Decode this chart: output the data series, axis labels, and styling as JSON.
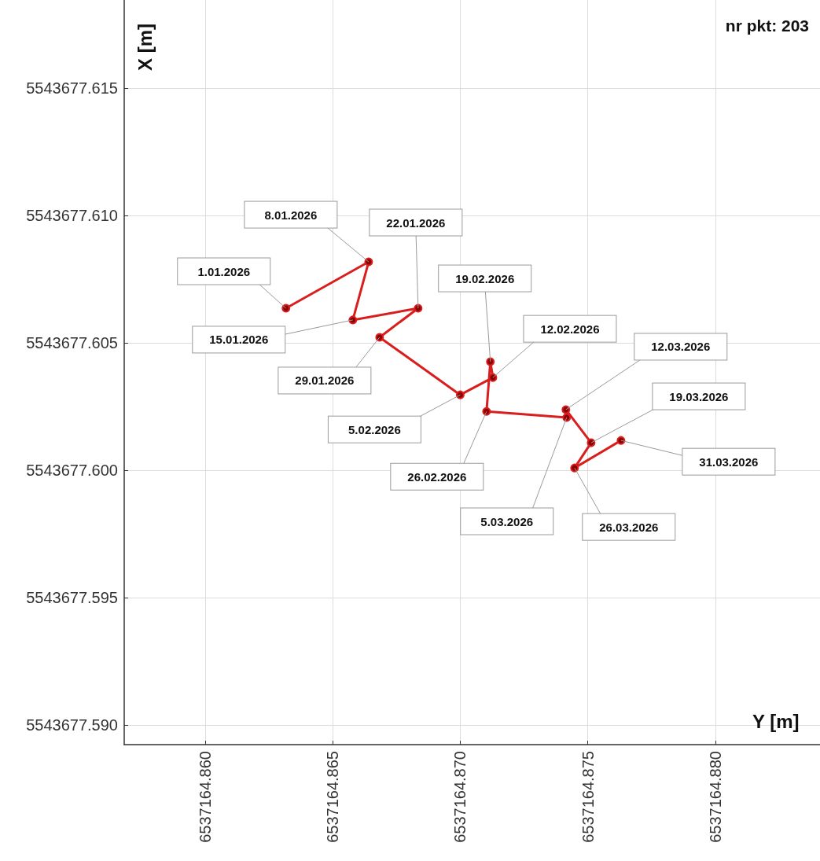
{
  "chart_data": {
    "type": "line",
    "xlabel": "Y [m]",
    "ylabel": "X [m]",
    "x": [
      6537164.86317,
      6537164.86641,
      6537164.86579,
      6537164.86835,
      6537164.86684,
      6537164.87,
      6537164.87128,
      6537164.87118,
      6537164.87103,
      6537164.87417,
      6537164.87414,
      6537164.87513,
      6537164.87448,
      6537164.8763
    ],
    "series": [
      {
        "color": "#d91e1e",
        "values": [
          5543677.60636,
          5543677.60818,
          5543677.6059,
          5543677.60636,
          5543677.60522,
          5543677.60296,
          5543677.60364,
          5543677.60426,
          5543677.60231,
          5543677.60207,
          5543677.60238,
          5543677.60108,
          5543677.60009,
          5543677.60117
        ]
      }
    ],
    "xlim": [
      6537164.85683,
      6537164.8841
    ],
    "ylim": [
      5543677.58923,
      5543677.61846
    ],
    "xticks": [
      {
        "value": 6537164.86,
        "label": "6537164.860"
      },
      {
        "value": 6537164.865,
        "label": "6537164.865"
      },
      {
        "value": 6537164.87,
        "label": "6537164.870"
      },
      {
        "value": 6537164.875,
        "label": "6537164.875"
      },
      {
        "value": 6537164.88,
        "label": "6537164.880"
      }
    ],
    "yticks": [
      {
        "value": 5543677.59,
        "label": "5543677.590"
      },
      {
        "value": 5543677.595,
        "label": "5543677.595"
      },
      {
        "value": 5543677.6,
        "label": "5543677.600"
      },
      {
        "value": 5543677.605,
        "label": "5543677.605"
      },
      {
        "value": 5543677.61,
        "label": "5543677.610"
      },
      {
        "value": 5543677.615,
        "label": "5543677.615"
      }
    ],
    "grid": true,
    "marker": "circle",
    "line_style": "solid",
    "annotations": [
      {
        "text": "1.01.2026",
        "x": 6537164.86317,
        "y": 5543677.60636
      },
      {
        "text": "8.01.2026",
        "x": 6537164.86641,
        "y": 5543677.60818
      },
      {
        "text": "15.01.2026",
        "x": 6537164.86579,
        "y": 5543677.6059
      },
      {
        "text": "22.01.2026",
        "x": 6537164.86835,
        "y": 5543677.60636
      },
      {
        "text": "29.01.2026",
        "x": 6537164.86684,
        "y": 5543677.60522
      },
      {
        "text": "5.02.2026",
        "x": 6537164.87,
        "y": 5543677.60296
      },
      {
        "text": "12.02.2026",
        "x": 6537164.87128,
        "y": 5543677.60364
      },
      {
        "text": "19.02.2026",
        "x": 6537164.87118,
        "y": 5543677.60426
      },
      {
        "text": "26.02.2026",
        "x": 6537164.87103,
        "y": 5543677.60231
      },
      {
        "text": "5.03.2026",
        "x": 6537164.87417,
        "y": 5543677.60207
      },
      {
        "text": "12.03.2026",
        "x": 6537164.87414,
        "y": 5543677.60238
      },
      {
        "text": "19.03.2026",
        "x": 6537164.87513,
        "y": 5543677.60108
      },
      {
        "text": "26.03.2026",
        "x": 6537164.87448,
        "y": 5543677.60009
      },
      {
        "text": "31.03.2026",
        "x": 6537164.8763,
        "y": 5543677.60117
      },
      "nr pkt: 203"
    ]
  }
}
